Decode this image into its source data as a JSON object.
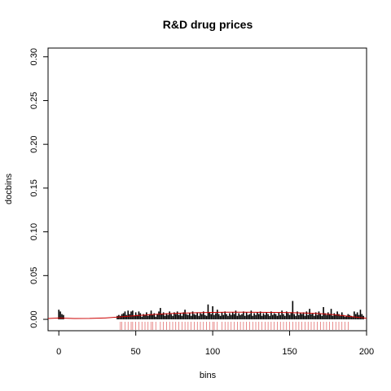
{
  "chart_data": {
    "type": "bar",
    "title": "R&D drug prices",
    "xlabel": "bins",
    "ylabel": "docbins",
    "xlim": [
      -7,
      200
    ],
    "ylim": [
      -0.013,
      0.31
    ],
    "x_ticks": [
      0,
      50,
      100,
      150,
      200
    ],
    "y_ticks": [
      0.0,
      0.05,
      0.1,
      0.15,
      0.2,
      0.25,
      0.3
    ],
    "y_tick_labels": [
      "0.00",
      "0.05",
      "0.10",
      "0.15",
      "0.20",
      "0.25",
      "0.30"
    ],
    "bars": {
      "x_start": 0,
      "values": [
        0.011,
        0.009,
        0.006,
        0.005,
        0.0,
        0.0,
        0.0,
        0.0,
        0.0,
        0.0,
        0.0,
        0.0,
        0.0,
        0.0,
        0.0,
        0.0,
        0.0,
        0.0,
        0.0,
        0.0,
        0.0,
        0.0,
        0.0,
        0.0,
        0.0,
        0.0,
        0.0,
        0.0,
        0.0,
        0.0,
        0.0,
        0.0,
        0.0,
        0.0,
        0.0,
        0.0,
        0.0,
        0.0,
        0.004,
        0.005,
        0.004,
        0.006,
        0.007,
        0.009,
        0.005,
        0.01,
        0.006,
        0.009,
        0.01,
        0.004,
        0.008,
        0.005,
        0.009,
        0.007,
        0.003,
        0.006,
        0.005,
        0.008,
        0.004,
        0.006,
        0.01,
        0.005,
        0.007,
        0.003,
        0.006,
        0.009,
        0.013,
        0.006,
        0.008,
        0.004,
        0.007,
        0.005,
        0.009,
        0.006,
        0.004,
        0.008,
        0.006,
        0.009,
        0.005,
        0.007,
        0.004,
        0.008,
        0.011,
        0.006,
        0.005,
        0.007,
        0.004,
        0.009,
        0.006,
        0.005,
        0.008,
        0.004,
        0.007,
        0.006,
        0.009,
        0.005,
        0.004,
        0.017,
        0.008,
        0.006,
        0.015,
        0.005,
        0.007,
        0.011,
        0.006,
        0.004,
        0.008,
        0.005,
        0.009,
        0.006,
        0.004,
        0.007,
        0.005,
        0.008,
        0.006,
        0.01,
        0.004,
        0.007,
        0.005,
        0.006,
        0.009,
        0.004,
        0.008,
        0.005,
        0.006,
        0.01,
        0.004,
        0.007,
        0.005,
        0.008,
        0.006,
        0.009,
        0.004,
        0.007,
        0.005,
        0.008,
        0.006,
        0.004,
        0.009,
        0.005,
        0.007,
        0.006,
        0.004,
        0.008,
        0.005,
        0.01,
        0.006,
        0.004,
        0.009,
        0.007,
        0.005,
        0.008,
        0.021,
        0.006,
        0.004,
        0.009,
        0.005,
        0.007,
        0.006,
        0.008,
        0.004,
        0.009,
        0.005,
        0.012,
        0.006,
        0.007,
        0.004,
        0.008,
        0.005,
        0.009,
        0.006,
        0.004,
        0.014,
        0.007,
        0.005,
        0.008,
        0.006,
        0.012,
        0.004,
        0.007,
        0.005,
        0.009,
        0.006,
        0.004,
        0.008,
        0.005,
        0.003,
        0.004,
        0.006,
        0.005,
        0.004,
        0.003,
        0.009,
        0.006,
        0.008,
        0.005,
        0.011,
        0.006,
        0.004
      ]
    },
    "density_curve": {
      "x": [
        -7,
        0,
        10,
        20,
        30,
        40,
        50,
        60,
        70,
        80,
        90,
        100,
        110,
        120,
        130,
        140,
        150,
        160,
        170,
        180,
        190,
        200
      ],
      "y": [
        0.001,
        0.0015,
        0.001,
        0.0011,
        0.0016,
        0.0028,
        0.0042,
        0.0054,
        0.0064,
        0.0071,
        0.0076,
        0.008,
        0.0082,
        0.0082,
        0.0081,
        0.0079,
        0.0077,
        0.0073,
        0.0066,
        0.0052,
        0.0032,
        0.0012
      ],
      "color": "#cc0000"
    },
    "rug": {
      "x": [
        40,
        41,
        43,
        45,
        47,
        48,
        50,
        52,
        54,
        56,
        58,
        60,
        61,
        63,
        66,
        68,
        70,
        72,
        74,
        76,
        78,
        80,
        82,
        84,
        86,
        88,
        90,
        92,
        94,
        96,
        98,
        100,
        101,
        103,
        106,
        108,
        110,
        112,
        114,
        116,
        118,
        120,
        122,
        124,
        126,
        128,
        130,
        132,
        134,
        136,
        138,
        140,
        142,
        144,
        146,
        148,
        150,
        152,
        154,
        156,
        158,
        160,
        162,
        164,
        166,
        168,
        170,
        172,
        174,
        176,
        178,
        180,
        182,
        184,
        186,
        188
      ],
      "color": "#cc0000"
    },
    "bar_color": "#000000",
    "grid": false,
    "legend": "none"
  }
}
